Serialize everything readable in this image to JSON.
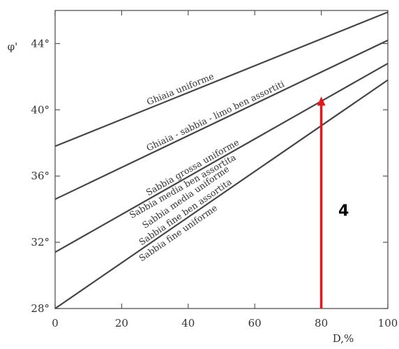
{
  "chart_data": {
    "type": "line",
    "xlabel": "D,%",
    "ylabel": "φ'",
    "xlim": [
      0,
      100
    ],
    "ylim": [
      28,
      46
    ],
    "x_ticks": [
      "0",
      "20",
      "40",
      "60",
      "80",
      "100"
    ],
    "y_ticks": [
      {
        "value": 28,
        "label": "28°"
      },
      {
        "value": 32,
        "label": "32°"
      },
      {
        "value": 36,
        "label": "36°"
      },
      {
        "value": 40,
        "label": "40°"
      },
      {
        "value": 44,
        "label": "44°"
      }
    ],
    "grid": false,
    "series": [
      {
        "x": [
          0,
          100
        ],
        "y": [
          37.8,
          45.9
        ],
        "label": "Ghiaia uniforme"
      },
      {
        "x": [
          0,
          100
        ],
        "y": [
          34.6,
          44.2
        ],
        "label": "Ghiaia - sabbia - limo ben assortiti"
      },
      {
        "x": [
          0,
          100
        ],
        "y": [
          31.4,
          42.8
        ],
        "label": "Sabbia grossa uniforme"
      },
      {
        "x": [
          0,
          100
        ],
        "y": [
          28.0,
          41.8
        ],
        "label": "Sabbia media ben assortita"
      }
    ],
    "band_labels": [
      "Sabbia media uniforme",
      "Sabbia fine ben assortita",
      "Sabbia fine uniforme"
    ],
    "annotation": {
      "text": "4",
      "color": "#e8151b",
      "arrow_x": 80,
      "arrow_from_y": 28,
      "arrow_to_y": 40.8
    }
  }
}
